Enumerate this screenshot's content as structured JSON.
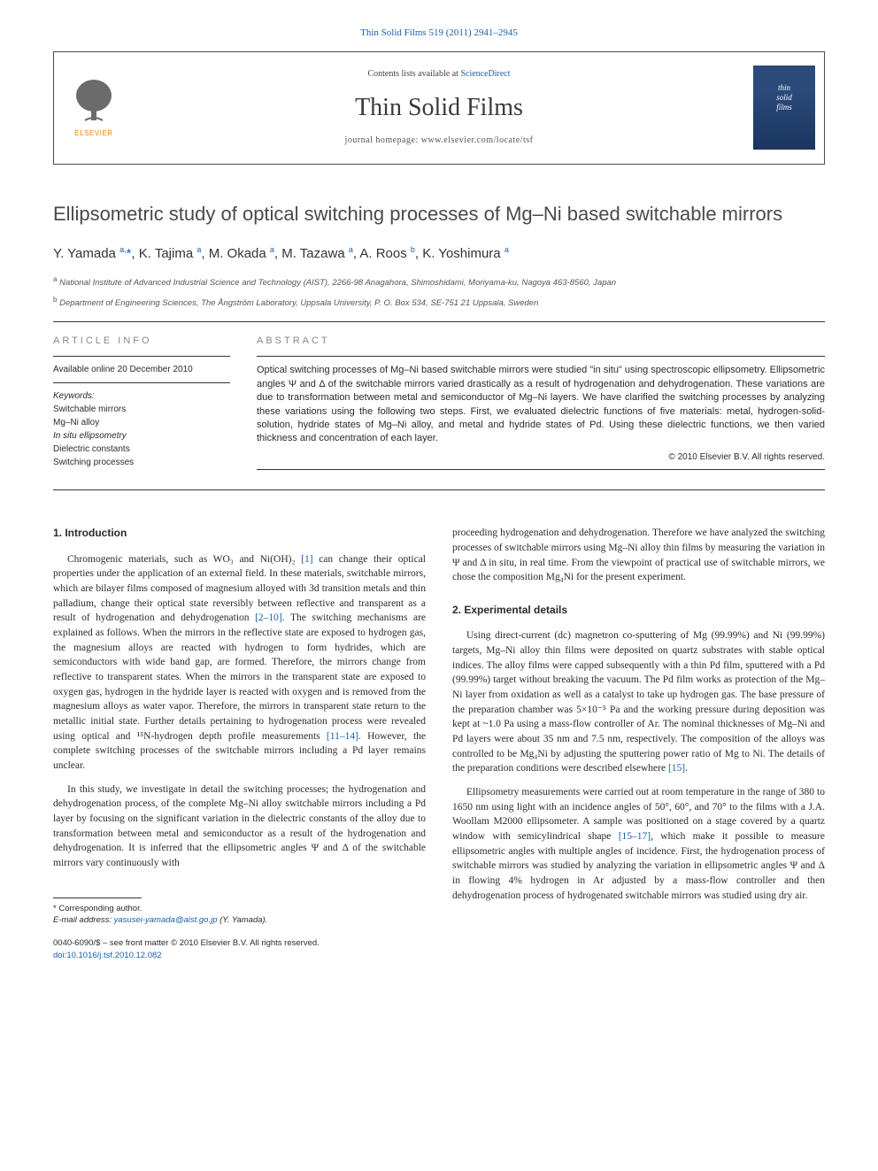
{
  "header": {
    "journal_ref": "Thin Solid Films 519 (2011) 2941–2945",
    "contents_prefix": "Contents lists available at ",
    "contents_link": "ScienceDirect",
    "journal_title": "Thin Solid Films",
    "homepage_label": "journal homepage: www.elsevier.com/locate/tsf",
    "cover_line1": "thin",
    "cover_line2": "solid",
    "cover_line3": "films",
    "elsevier_label": "ELSEVIER"
  },
  "article": {
    "title": "Ellipsometric study of optical switching processes of Mg–Ni based switchable mirrors",
    "authors_html": "Y. Yamada <sup>a,</sup><span class='asterisk'>*</span>, K. Tajima <sup>a</sup>, M. Okada <sup>a</sup>, M. Tazawa <sup>a</sup>, A. Roos <sup>b</sup>, K. Yoshimura <sup>a</sup>",
    "affil_a": "National Institute of Advanced Industrial Science and Technology (AIST), 2266-98 Anagahora, Shimoshidami, Moriyama-ku, Nagoya 463-8560, Japan",
    "affil_b": "Department of Engineering Sciences, The Ångström Laboratory, Uppsala University, P. O. Box 534, SE-751 21 Uppsala, Sweden"
  },
  "info": {
    "heading": "ARTICLE INFO",
    "available": "Available online 20 December 2010",
    "keywords_label": "Keywords:",
    "keywords": [
      "Switchable mirrors",
      "Mg–Ni alloy",
      "In situ ellipsometry",
      "Dielectric constants",
      "Switching processes"
    ]
  },
  "abstract": {
    "heading": "ABSTRACT",
    "text": "Optical switching processes of Mg–Ni based switchable mirrors were studied \"in situ\" using spectroscopic ellipsometry. Ellipsometric angles Ψ and Δ of the switchable mirrors varied drastically as a result of hydrogenation and dehydrogenation. These variations are due to transformation between metal and semiconductor of Mg–Ni layers. We have clarified the switching processes by analyzing these variations using the following two steps. First, we evaluated dielectric functions of five materials: metal, hydrogen-solid-solution, hydride states of Mg–Ni alloy, and metal and hydride states of Pd. Using these dielectric functions, we then varied thickness and concentration of each layer.",
    "copyright": "© 2010 Elsevier B.V. All rights reserved."
  },
  "sections": {
    "intro_heading": "1. Introduction",
    "intro_p1_pre": "Chromogenic materials, such as WO₃ and Ni(OH)₂ ",
    "intro_p1_ref1": "[1]",
    "intro_p1_mid": " can change their optical properties under the application of an external field. In these materials, switchable mirrors, which are bilayer films composed of magnesium alloyed with 3d transition metals and thin palladium, change their optical state reversibly between reflective and transparent as a result of hydrogenation and dehydrogenation ",
    "intro_p1_ref2": "[2–10]",
    "intro_p1_post": ". The switching mechanisms are explained as follows. When the mirrors in the reflective state are exposed to hydrogen gas, the magnesium alloys are reacted with hydrogen to form hydrides, which are semiconductors with wide band gap, are formed. Therefore, the mirrors change from reflective to transparent states. When the mirrors in the transparent state are exposed to oxygen gas, hydrogen in the hydride layer is reacted with oxygen and is removed from the magnesium alloys as water vapor. Therefore, the mirrors in transparent state return to the metallic initial state. Further details pertaining to hydrogenation process were revealed using optical and ¹⁵N-hydrogen depth profile measurements ",
    "intro_p1_ref3": "[11–14]",
    "intro_p1_end": ". However, the complete switching processes of the switchable mirrors including a Pd layer remains unclear.",
    "intro_p2": "In this study, we investigate in detail the switching processes; the hydrogenation and dehydrogenation process, of the complete Mg–Ni alloy switchable mirrors including a Pd layer by focusing on the significant variation in the dielectric constants of the alloy due to transformation between metal and semiconductor as a result of the hydrogenation and dehydrogenation. It is inferred that the ellipsometric angles Ψ and Δ of the switchable mirrors vary continuously with",
    "col2_p1": "proceeding hydrogenation and dehydrogenation. Therefore we have analyzed the switching processes of switchable mirrors using Mg–Ni alloy thin films by measuring the variation in Ψ and Δ in situ, in real time. From the viewpoint of practical use of switchable mirrors, we chose the composition Mg₄Ni for the present experiment.",
    "exp_heading": "2. Experimental details",
    "exp_p1_pre": "Using direct-current (dc) magnetron co-sputtering of Mg (99.99%) and Ni (99.99%) targets, Mg–Ni alloy thin films were deposited on quartz substrates with stable optical indices. The alloy films were capped subsequently with a thin Pd film, sputtered with a Pd (99.99%) target without breaking the vacuum. The Pd film works as protection of the Mg–Ni layer from oxidation as well as a catalyst to take up hydrogen gas. The base pressure of the preparation chamber was 5×10⁻⁵ Pa and the working pressure during deposition was kept at ~1.0 Pa using a mass-flow controller of Ar. The nominal thicknesses of Mg–Ni and Pd layers were about 35 nm and 7.5 nm, respectively. The composition of the alloys was controlled to be Mg₄Ni by adjusting the sputtering power ratio of Mg to Ni. The details of the preparation conditions were described elsewhere ",
    "exp_p1_ref": "[15]",
    "exp_p1_end": ".",
    "exp_p2_pre": "Ellipsometry measurements were carried out at room temperature in the range of 380 to 1650 nm using light with an incidence angles of 50°, 60°, and 70° to the films with a J.A. Woollam M2000 ellipsometer. A sample was positioned on a stage covered by a quartz window with semicylindrical shape ",
    "exp_p2_ref": "[15–17]",
    "exp_p2_end": ", which make it possible to measure ellipsometric angles with multiple angles of incidence. First, the hydrogenation process of switchable mirrors was studied by analyzing the variation in ellipsometric angles Ψ and Δ in flowing 4% hydrogen in Ar adjusted by a mass-flow controller and then dehydrogenation process of hydrogenated switchable mirrors was studied using dry air."
  },
  "footer": {
    "corresp_label": "* Corresponding author.",
    "email_label": "E-mail address: ",
    "email": "yasusei-yamada@aist.go.jp",
    "email_paren": " (Y. Yamada).",
    "issn": "0040-6090/$ – see front matter © 2010 Elsevier B.V. All rights reserved.",
    "doi": "doi:10.1016/j.tsf.2010.12.082"
  },
  "colors": {
    "link": "#1a5ea8",
    "text": "#2a2a2a",
    "heading_gray": "#888888",
    "elsevier_orange": "#ef8200",
    "cover_blue": "#2b4a7a"
  }
}
